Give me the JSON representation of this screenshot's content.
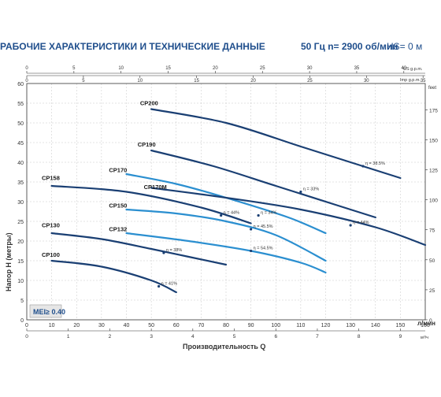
{
  "header": {
    "title": "РАБОЧИЕ ХАРАКТЕРИСТИКИ И ТЕХНИЧЕСКИЕ ДАННЫЕ",
    "freq": "50 Гц   n= 2900 об/мин",
    "hs": "HS= 0 м"
  },
  "colors": {
    "dark": "#1a3f73",
    "light": "#2b8fd0",
    "axis": "#333333",
    "grid": "#b9b9b9"
  },
  "chart_data": {
    "type": "line",
    "xlabel": "Производительность Q",
    "ylabel": "Напор H (метры)",
    "x_unit_label": "л/мин",
    "m3h_unit_label": "м³/ч",
    "usgpm_label": "US g.p.m.",
    "impgpm_label": "Imp g.p.m.",
    "feet_label": "feet",
    "xlim": [
      0,
      160
    ],
    "ylim": [
      0,
      60
    ],
    "x_ticks": [
      "0",
      "10",
      "20",
      "30",
      "40",
      "50",
      "60",
      "70",
      "80",
      "90",
      "100",
      "110",
      "120",
      "130",
      "140",
      "150",
      "160"
    ],
    "y_ticks": [
      "0",
      "5",
      "10",
      "15",
      "20",
      "25",
      "30",
      "35",
      "40",
      "45",
      "50",
      "55",
      "60"
    ],
    "m3h_ticks": [
      "0",
      "1",
      "2",
      "3",
      "4",
      "5",
      "6",
      "7",
      "8",
      "9"
    ],
    "usgpm_ticks": [
      "0",
      "5",
      "10",
      "15",
      "20",
      "25",
      "30",
      "35",
      "40"
    ],
    "impgpm_ticks": [
      "0",
      "5",
      "10",
      "15",
      "20",
      "25",
      "30",
      "35"
    ],
    "feet_ticks": [
      "0",
      "25",
      "50",
      "75",
      "100",
      "125",
      "150",
      "175"
    ],
    "mei_label": "MEI≥ 0.40",
    "series": [
      {
        "name": "CP200",
        "tone": "dark",
        "x": [
          50,
          80,
          110,
          135,
          150
        ],
        "y": [
          53.5,
          50,
          44,
          39,
          36
        ]
      },
      {
        "name": "CP190",
        "tone": "dark",
        "x": [
          50,
          75,
          100,
          125,
          140
        ],
        "y": [
          43,
          39,
          34,
          29,
          26
        ]
      },
      {
        "name": "CP170",
        "tone": "light",
        "x": [
          40,
          60,
          80,
          105,
          120
        ],
        "y": [
          37,
          34.5,
          31,
          26,
          22
        ]
      },
      {
        "name": "CP170M",
        "tone": "dark",
        "x": [
          50,
          80,
          110,
          140,
          160
        ],
        "y": [
          33.5,
          31,
          28,
          23.5,
          19
        ]
      },
      {
        "name": "CP158",
        "tone": "dark",
        "x": [
          10,
          40,
          70,
          90
        ],
        "y": [
          34,
          32.5,
          28.5,
          24.5
        ]
      },
      {
        "name": "CP150",
        "tone": "light",
        "x": [
          40,
          60,
          80,
          100,
          120
        ],
        "y": [
          28,
          27,
          25,
          21.5,
          15
        ]
      },
      {
        "name": "CP132",
        "tone": "light",
        "x": [
          40,
          65,
          90,
          110,
          120
        ],
        "y": [
          22,
          20,
          17.5,
          14.5,
          12
        ]
      },
      {
        "name": "CP130",
        "tone": "dark",
        "x": [
          10,
          30,
          50,
          65,
          80
        ],
        "y": [
          22,
          20.5,
          18,
          16,
          14
        ]
      },
      {
        "name": "CP100",
        "tone": "dark",
        "x": [
          10,
          30,
          50,
          60
        ],
        "y": [
          15,
          13.5,
          10,
          7
        ]
      }
    ],
    "annotations": [
      {
        "text": "CP200",
        "x": 45.5,
        "y": 54.5
      },
      {
        "text": "CP190",
        "x": 44.5,
        "y": 44
      },
      {
        "text": "CP170",
        "x": 33,
        "y": 37.5
      },
      {
        "text": "CP170M",
        "x": 47,
        "y": 33.2
      },
      {
        "text": "CP158",
        "x": 6,
        "y": 35.5
      },
      {
        "text": "CP150",
        "x": 33,
        "y": 28.5
      },
      {
        "text": "CP132",
        "x": 33,
        "y": 22.5
      },
      {
        "text": "CP130",
        "x": 6,
        "y": 23.5
      },
      {
        "text": "CP100",
        "x": 6,
        "y": 16
      }
    ],
    "efficiency_labels": [
      {
        "text": "η = 38.5%",
        "x": 135,
        "y": 39
      },
      {
        "text": "η = 33%",
        "x": 110,
        "y": 32.5
      },
      {
        "text": "η = 44%",
        "x": 130,
        "y": 24
      },
      {
        "text": "η = 44%",
        "x": 78,
        "y": 26.5
      },
      {
        "text": "η = 34%",
        "x": 93,
        "y": 26.5
      },
      {
        "text": "η = 45.5%",
        "x": 90,
        "y": 23
      },
      {
        "text": "η = 54.5%",
        "x": 90,
        "y": 17.5
      },
      {
        "text": "η = 38%",
        "x": 55,
        "y": 17
      },
      {
        "text": "η = 41%",
        "x": 53,
        "y": 8.5
      }
    ]
  }
}
